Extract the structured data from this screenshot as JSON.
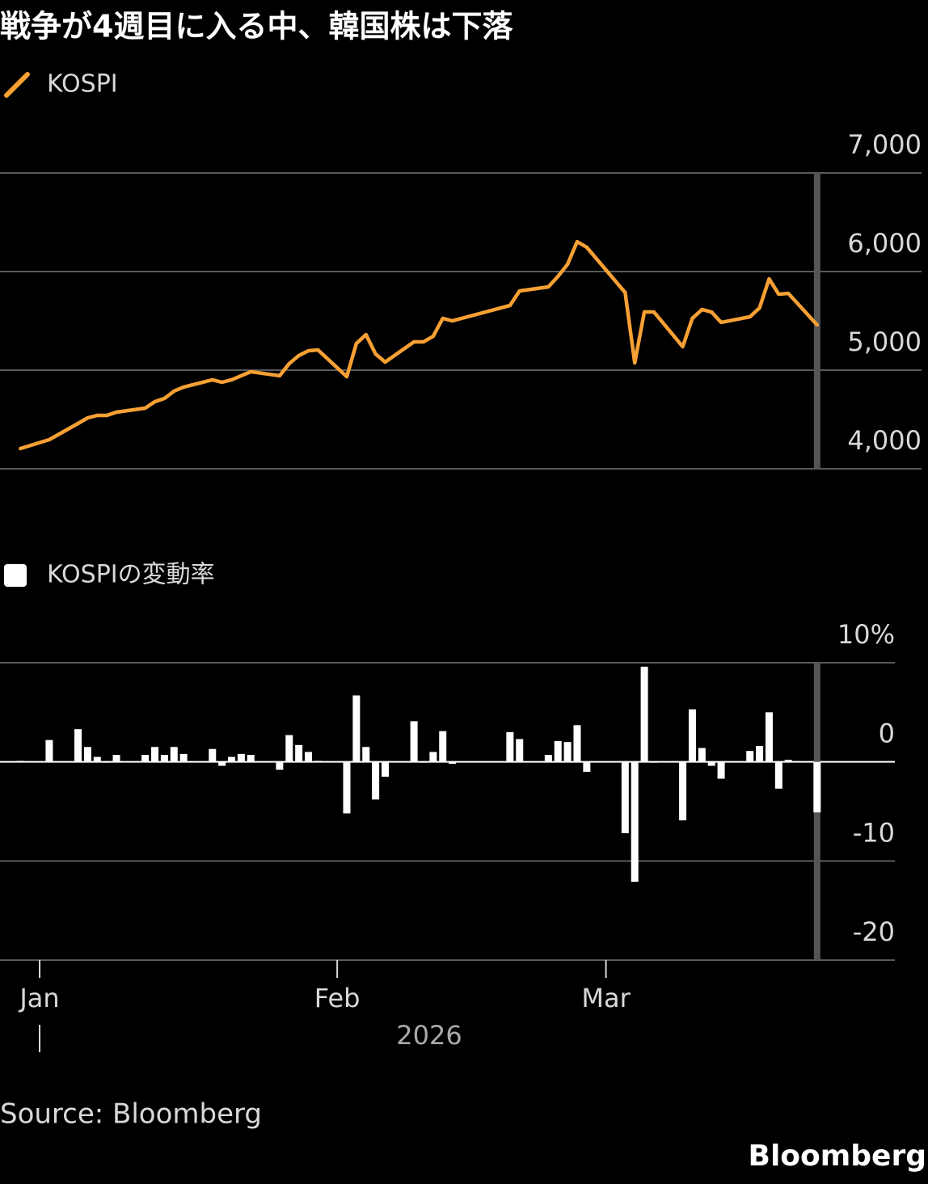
{
  "title": "戦争が4週目に入る中、韓国株は下落",
  "source": "Source: Bloomberg",
  "logo": "Bloomberg",
  "chart_data": [
    {
      "type": "line",
      "x": [
        -2,
        1,
        4,
        5,
        6,
        7,
        8,
        11,
        12,
        13,
        14,
        15,
        18,
        19,
        20,
        21,
        22,
        25,
        26,
        27,
        28,
        29,
        32,
        33,
        34,
        35,
        36,
        39,
        40,
        41,
        42,
        43,
        49,
        50,
        53,
        54,
        55,
        56,
        57,
        61,
        62,
        63,
        64,
        67,
        68,
        69,
        70,
        71,
        74,
        75,
        76,
        77,
        78,
        81
      ],
      "xlim": [
        -4.13,
        89.1
      ],
      "series": [
        {
          "name": "KOSPI",
          "color": "#f7a033",
          "values": [
            4205,
            4295,
            4459,
            4516,
            4541,
            4541,
            4574,
            4615,
            4680,
            4713,
            4787,
            4828,
            4902,
            4877,
            4902,
            4943,
            4984,
            4943,
            5066,
            5148,
            5197,
            5205,
            4934,
            5270,
            5361,
            5164,
            5082,
            5287,
            5287,
            5344,
            5525,
            5500,
            5656,
            5803,
            5844,
            5951,
            6074,
            6303,
            6246,
            5787,
            5074,
            5590,
            5590,
            5238,
            5525,
            5615,
            5590,
            5484,
            5541,
            5631,
            5926,
            5770,
            5779,
            5459
          ]
        }
      ],
      "ylim": [
        4000,
        7000
      ],
      "yticks": [
        {
          "value": 4000,
          "label": "4,000"
        },
        {
          "value": 5000,
          "label": "5,000"
        },
        {
          "value": 6000,
          "label": "6,000"
        },
        {
          "value": 7000,
          "label": "7,000"
        }
      ],
      "grid": true
    },
    {
      "type": "bar",
      "x": [
        -2,
        1,
        4,
        5,
        6,
        7,
        8,
        11,
        12,
        13,
        14,
        15,
        18,
        19,
        20,
        21,
        22,
        25,
        26,
        27,
        28,
        29,
        32,
        33,
        34,
        35,
        36,
        39,
        40,
        41,
        42,
        43,
        49,
        50,
        53,
        54,
        55,
        56,
        57,
        61,
        62,
        63,
        64,
        67,
        68,
        69,
        70,
        71,
        74,
        75,
        76,
        77,
        78,
        81
      ],
      "xlim": [
        -4.13,
        89.1
      ],
      "xticks": [
        {
          "value": 0,
          "label": "Jan"
        },
        {
          "value": 31,
          "label": "Feb"
        },
        {
          "value": 59,
          "label": "Mar"
        }
      ],
      "x_label": "2026",
      "series": [
        {
          "name": "KOSPIの変動率",
          "color": "#ffffff",
          "values": [
            0.1,
            2.2,
            3.3,
            1.5,
            0.5,
            0.0,
            0.7,
            0.7,
            1.5,
            0.7,
            1.5,
            0.8,
            1.3,
            -0.4,
            0.5,
            0.8,
            0.7,
            -0.8,
            2.7,
            1.7,
            1.0,
            0.1,
            -5.2,
            6.7,
            1.5,
            -3.8,
            -1.5,
            4.1,
            0.0,
            1.0,
            3.1,
            -0.2,
            3.0,
            2.3,
            0.7,
            2.1,
            2.0,
            3.7,
            -1.0,
            -7.2,
            -12.1,
            9.6,
            0.0,
            -5.9,
            5.3,
            1.4,
            -0.4,
            -1.7,
            1.1,
            1.6,
            5.0,
            -2.7,
            0.2,
            -5.1
          ]
        }
      ],
      "ylim": [
        -20,
        10
      ],
      "yticks": [
        {
          "value": -20,
          "label": "-20"
        },
        {
          "value": -10,
          "label": "-10"
        },
        0,
        {
          "value": 10,
          "label": "10%"
        }
      ],
      "grid": true
    }
  ]
}
